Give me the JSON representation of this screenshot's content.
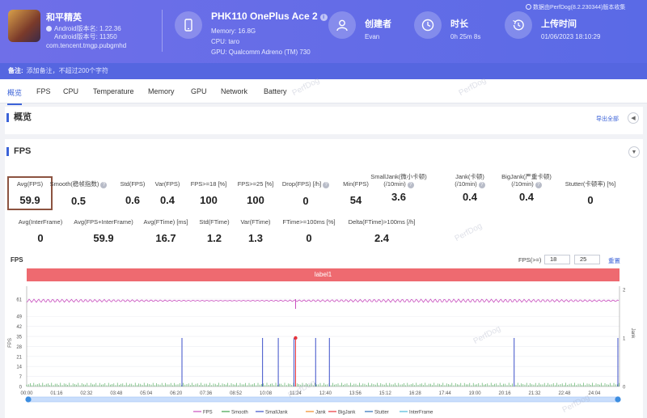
{
  "app": {
    "name": "和平精英",
    "android_version_name": "Android版本名: 1.22.36",
    "android_version_code": "Android版本号: 11350",
    "package": "com.tencent.tmgp.pubgmhd"
  },
  "device": {
    "name": "PHK110 OnePlus Ace 2",
    "info_icon": "i",
    "memory": "Memory: 16.8G",
    "cpu": "CPU: taro",
    "gpu": "GPU: Qualcomm Adreno (TM) 730"
  },
  "creator": {
    "title": "创建者",
    "value": "Evan"
  },
  "duration": {
    "title": "时长",
    "value": "0h 25m 8s"
  },
  "upload": {
    "title": "上传时间",
    "value": "01/06/2023 18:10:29"
  },
  "data_credit": "数据由PerfDog(8.2.230344)版本收集",
  "note": {
    "label": "备注:",
    "text": "添加备注，不超过200个字符"
  },
  "tabs": [
    "概览",
    "FPS",
    "CPU",
    "Temperature",
    "Memory",
    "GPU",
    "Network",
    "Battery"
  ],
  "watermark": "PerfDog",
  "overview": {
    "title": "概览",
    "export": "导出全部",
    "collapse_icon": "chevron-left-icon"
  },
  "fps_section": {
    "title": "FPS",
    "collapse_icon": "chevron-down-icon"
  },
  "metrics_row1": [
    {
      "label": "Avg(FPS)",
      "value": "59.9"
    },
    {
      "label": "Smooth(稳帧指数)",
      "value": "0.5",
      "help": true
    },
    {
      "label": "Std(FPS)",
      "value": "0.6"
    },
    {
      "label": "Var(FPS)",
      "value": "0.4"
    },
    {
      "label": "FPS>=18 [%]",
      "value": "100"
    },
    {
      "label": "FPS>=25 [%]",
      "value": "100"
    },
    {
      "label": "Drop(FPS) [/h]",
      "value": "0",
      "help": true
    },
    {
      "label": "Min(FPS)",
      "value": "54"
    },
    {
      "label": "SmallJank(微小卡顿)",
      "label2": "(/10min)",
      "value": "3.6",
      "help": true
    },
    {
      "label": "Jank(卡顿)",
      "label2": "(/10min)",
      "value": "0.4",
      "help": true
    },
    {
      "label": "BigJank(严重卡顿)",
      "label2": "(/10min)",
      "value": "0.4",
      "help": true
    },
    {
      "label": "Stutter(卡顿率) [%]",
      "value": "0"
    }
  ],
  "metrics_row2": [
    {
      "label": "Avg(InterFrame)",
      "value": "0"
    },
    {
      "label": "Avg(FPS+InterFrame)",
      "value": "59.9"
    },
    {
      "label": "Avg(FTime) [ms]",
      "value": "16.7"
    },
    {
      "label": "Std(FTime)",
      "value": "1.2"
    },
    {
      "label": "Var(FTime)",
      "value": "1.3"
    },
    {
      "label": "FTime>=100ms [%]",
      "value": "0"
    },
    {
      "label": "Delta(FTime)>100ms [/h]",
      "value": "2.4"
    }
  ],
  "chart_header": {
    "title": "FPS",
    "threshold_label": "FPS(>=)",
    "threshold_1": "18",
    "threshold_2": "25",
    "reset": "重置",
    "label_bar": "label1"
  },
  "chart_data": {
    "type": "line",
    "y_left_label": "FPS",
    "y_right_label": "Jank",
    "y_left_ticks": [
      "61",
      "49",
      "42",
      "35",
      "28",
      "21",
      "14",
      "7",
      "0"
    ],
    "y_right_ticks": [
      "2",
      "1",
      "0"
    ],
    "x_ticks": [
      "00:00",
      "01:16",
      "02:32",
      "03:48",
      "05:04",
      "06:20",
      "07:36",
      "08:52",
      "10:08",
      "11:24",
      "12:40",
      "13:56",
      "15:12",
      "16:28",
      "17:44",
      "19:00",
      "20:16",
      "21:32",
      "22:48",
      "24:04"
    ],
    "fps_level": 59.9,
    "jank_spikes_time": [
      "06:35",
      "10:00",
      "10:40",
      "11:20",
      "12:15",
      "12:50",
      "20:40"
    ],
    "bigjank_time": "11:24",
    "legend": [
      {
        "name": "FPS",
        "color": "#c94fbf"
      },
      {
        "name": "Smooth",
        "color": "#3fa34d"
      },
      {
        "name": "SmallJank",
        "color": "#3b4fc9"
      },
      {
        "name": "Jank",
        "color": "#f08a24"
      },
      {
        "name": "BigJank",
        "color": "#e8343a"
      },
      {
        "name": "Stutter",
        "color": "#2c6fb8"
      },
      {
        "name": "InterFrame",
        "color": "#4fb9d9"
      }
    ]
  }
}
